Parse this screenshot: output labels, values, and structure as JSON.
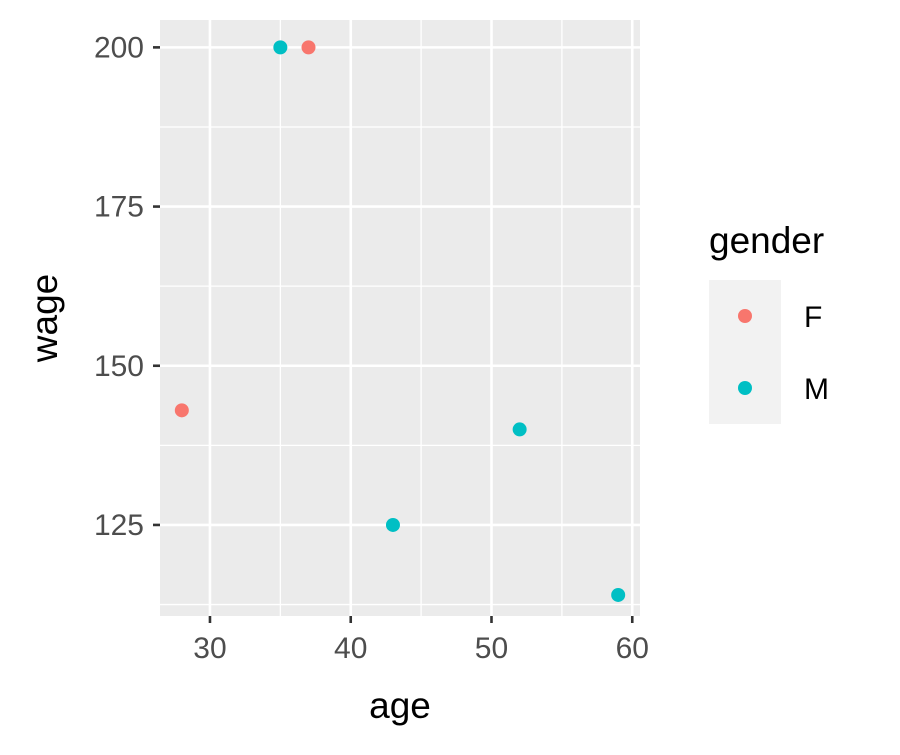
{
  "chart_data": {
    "type": "scatter",
    "title": "",
    "xlabel": "age",
    "ylabel": "wage",
    "xlim": [
      26.45,
      60.55
    ],
    "ylim": [
      110.7,
      204.3
    ],
    "x_ticks": [
      30,
      40,
      50,
      60
    ],
    "x_minor_ticks": [
      35,
      45,
      55
    ],
    "y_ticks": [
      125,
      150,
      175,
      200
    ],
    "y_minor_ticks": [
      112.5,
      137.5,
      162.5,
      187.5
    ],
    "grid": true,
    "legend": {
      "title": "gender",
      "position": "right",
      "entries": [
        {
          "label": "F",
          "color": "#F8766D"
        },
        {
          "label": "M",
          "color": "#00BFC4"
        }
      ]
    },
    "points": [
      {
        "x": 28,
        "y": 143,
        "group": "F"
      },
      {
        "x": 37,
        "y": 200,
        "group": "F"
      },
      {
        "x": 35,
        "y": 200,
        "group": "M"
      },
      {
        "x": 43,
        "y": 125,
        "group": "M"
      },
      {
        "x": 52,
        "y": 140,
        "group": "M"
      },
      {
        "x": 59,
        "y": 114,
        "group": "M"
      }
    ],
    "colors": {
      "panel_background": "#EBEBEB",
      "legend_key_background": "#F2F2F2",
      "grid": "#FFFFFF"
    }
  }
}
